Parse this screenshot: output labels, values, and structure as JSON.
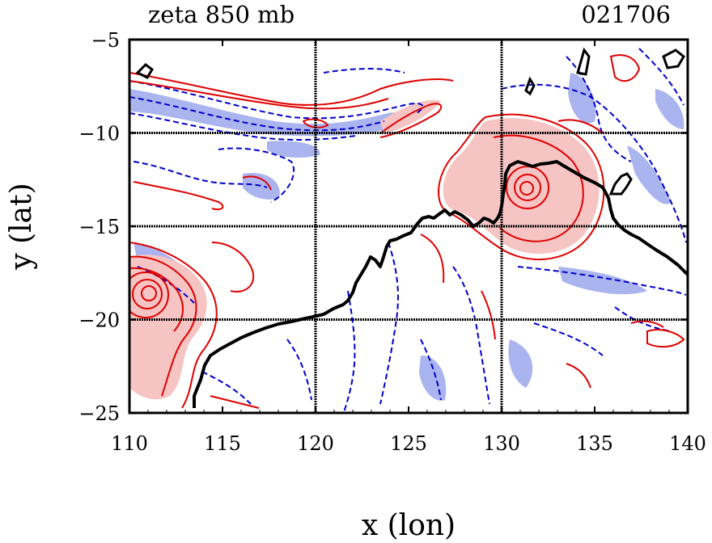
{
  "title": {
    "left": "zeta 850 mb",
    "right": "021706"
  },
  "axes": {
    "xlabel": "x (lon)",
    "ylabel": "y (lat)",
    "xlim": [
      110,
      140
    ],
    "ylim": [
      -25,
      -5
    ],
    "xticks": [
      "110",
      "115",
      "120",
      "125",
      "130",
      "135",
      "140"
    ],
    "yticks": [
      "−5",
      "−10",
      "−15",
      "−20",
      "−25"
    ],
    "grid": true
  },
  "colors": {
    "positive_contour": "#e00000",
    "positive_fill": "#f7c4c4",
    "negative_contour": "#0000cc",
    "negative_fill": "#aab4ee",
    "coastline": "#000000",
    "grid": "#000000"
  },
  "map": {
    "variable": "zeta",
    "level": "850 mb",
    "timestamp": "021706",
    "features": [
      {
        "kind": "positive-vortex",
        "center_lon": 110.6,
        "center_lat": -18.6
      },
      {
        "kind": "positive-vortex",
        "center_lon": 131.0,
        "center_lat": -13.0
      },
      {
        "kind": "coastline",
        "name": "northwest-australia"
      }
    ]
  }
}
